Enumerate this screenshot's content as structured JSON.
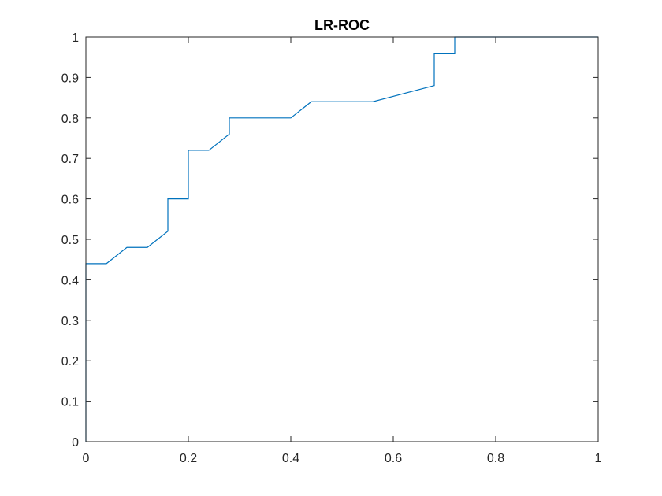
{
  "chart_data": {
    "type": "line",
    "title": "LR-ROC",
    "xlabel": "",
    "ylabel": "",
    "xlim": [
      0,
      1
    ],
    "ylim": [
      0,
      1
    ],
    "xticks": [
      0,
      0.2,
      0.4,
      0.6,
      0.8,
      1
    ],
    "xtick_labels": [
      "0",
      "0.2",
      "0.4",
      "0.6",
      "0.8",
      "1"
    ],
    "yticks": [
      0,
      0.1,
      0.2,
      0.3,
      0.4,
      0.5,
      0.6,
      0.7,
      0.8,
      0.9,
      1
    ],
    "ytick_labels": [
      "0",
      "0.1",
      "0.2",
      "0.3",
      "0.4",
      "0.5",
      "0.6",
      "0.7",
      "0.8",
      "0.9",
      "1"
    ],
    "grid": false,
    "series": [
      {
        "color": "#0072BD",
        "x": [
          0,
          0,
          0.04,
          0.08,
          0.12,
          0.16,
          0.16,
          0.2,
          0.2,
          0.24,
          0.28,
          0.28,
          0.4,
          0.44,
          0.56,
          0.68,
          0.68,
          0.72,
          0.72,
          1.0
        ],
        "y": [
          0,
          0.44,
          0.44,
          0.48,
          0.48,
          0.52,
          0.6,
          0.6,
          0.72,
          0.72,
          0.76,
          0.8,
          0.8,
          0.84,
          0.84,
          0.88,
          0.96,
          0.96,
          1.0,
          1.0
        ]
      }
    ]
  }
}
